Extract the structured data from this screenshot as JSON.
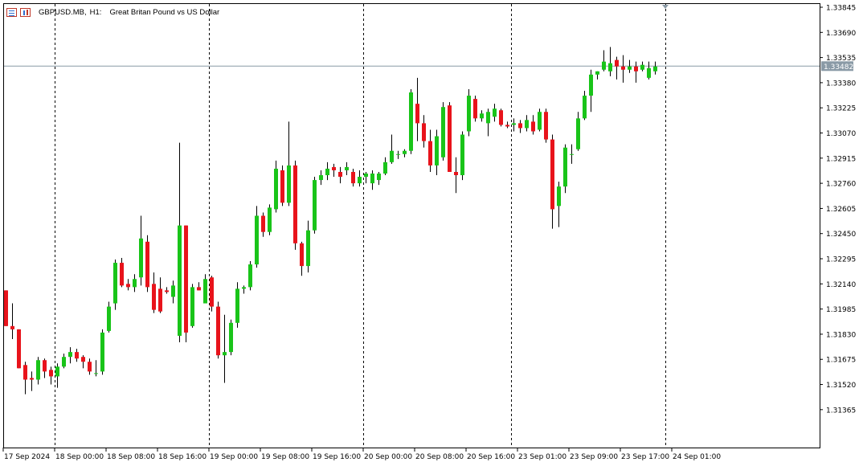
{
  "header": {
    "symbol": "GBPUSD.MB,",
    "timeframe": "H1:",
    "description": "Great Britan Pound vs US Dollar",
    "icons": [
      "list-icon",
      "candles-icon"
    ]
  },
  "current_price_label": "1.33482",
  "colors": {
    "bull": "#19c419",
    "bear": "#e8131b",
    "wick": "#000000",
    "grid": "#000000",
    "price_line": "#8a9aa6",
    "price_tag_bg": "#8a9aa6"
  },
  "chart_data": {
    "type": "candlestick",
    "ylim": [
      1.3128,
      1.33845
    ],
    "y_ticks": [
      "1.33845",
      "1.33690",
      "1.33535",
      "1.33380",
      "1.33225",
      "1.33070",
      "1.32915",
      "1.32760",
      "1.32605",
      "1.32450",
      "1.32295",
      "1.32140",
      "1.31985",
      "1.31830",
      "1.31675",
      "1.31520",
      "1.31365"
    ],
    "x_labels": [
      "17 Sep 2024",
      "18 Sep 00:00",
      "18 Sep 08:00",
      "18 Sep 16:00",
      "19 Sep 00:00",
      "19 Sep 08:00",
      "19 Sep 16:00",
      "20 Sep 00:00",
      "20 Sep 08:00",
      "20 Sep 16:00",
      "23 Sep 01:00",
      "23 Sep 09:00",
      "23 Sep 17:00",
      "24 Sep 01:00"
    ],
    "day_separators_at_label_index": [
      1,
      4,
      7,
      10,
      13
    ],
    "current_price": 1.33482,
    "candles": [
      {
        "o": 1.321,
        "h": 1.321,
        "l": 1.3188,
        "c": 1.3188
      },
      {
        "o": 1.3188,
        "h": 1.3202,
        "l": 1.318,
        "c": 1.3186
      },
      {
        "o": 1.3186,
        "h": 1.3186,
        "l": 1.3162,
        "c": 1.3162
      },
      {
        "o": 1.3164,
        "h": 1.3166,
        "l": 1.3146,
        "c": 1.3155
      },
      {
        "o": 1.3156,
        "h": 1.316,
        "l": 1.3148,
        "c": 1.3155
      },
      {
        "o": 1.3155,
        "h": 1.3169,
        "l": 1.3152,
        "c": 1.3167
      },
      {
        "o": 1.3167,
        "h": 1.3168,
        "l": 1.3156,
        "c": 1.316
      },
      {
        "o": 1.3161,
        "h": 1.3163,
        "l": 1.3152,
        "c": 1.3157
      },
      {
        "o": 1.3157,
        "h": 1.3165,
        "l": 1.315,
        "c": 1.3163
      },
      {
        "o": 1.3163,
        "h": 1.3171,
        "l": 1.3162,
        "c": 1.3169
      },
      {
        "o": 1.3169,
        "h": 1.3175,
        "l": 1.3165,
        "c": 1.3172
      },
      {
        "o": 1.3172,
        "h": 1.3174,
        "l": 1.3166,
        "c": 1.3168
      },
      {
        "o": 1.3169,
        "h": 1.317,
        "l": 1.3162,
        "c": 1.3166
      },
      {
        "o": 1.3166,
        "h": 1.3168,
        "l": 1.3158,
        "c": 1.316
      },
      {
        "o": 1.3159,
        "h": 1.3167,
        "l": 1.3157,
        "c": 1.3159
      },
      {
        "o": 1.316,
        "h": 1.3186,
        "l": 1.3158,
        "c": 1.3184
      },
      {
        "o": 1.3185,
        "h": 1.3203,
        "l": 1.3184,
        "c": 1.32
      },
      {
        "o": 1.3202,
        "h": 1.3229,
        "l": 1.3198,
        "c": 1.3227
      },
      {
        "o": 1.3227,
        "h": 1.323,
        "l": 1.3212,
        "c": 1.3213
      },
      {
        "o": 1.3214,
        "h": 1.3217,
        "l": 1.321,
        "c": 1.3212
      },
      {
        "o": 1.3212,
        "h": 1.322,
        "l": 1.3209,
        "c": 1.3217
      },
      {
        "o": 1.3218,
        "h": 1.3256,
        "l": 1.3213,
        "c": 1.3242
      },
      {
        "o": 1.324,
        "h": 1.3244,
        "l": 1.3209,
        "c": 1.3212
      },
      {
        "o": 1.3214,
        "h": 1.3221,
        "l": 1.3196,
        "c": 1.3198
      },
      {
        "o": 1.3211,
        "h": 1.3218,
        "l": 1.3196,
        "c": 1.3197
      },
      {
        "o": 1.321,
        "h": 1.3212,
        "l": 1.3208,
        "c": 1.3209
      },
      {
        "o": 1.3206,
        "h": 1.3216,
        "l": 1.3202,
        "c": 1.3213
      },
      {
        "o": 1.3182,
        "h": 1.3301,
        "l": 1.3178,
        "c": 1.325
      },
      {
        "o": 1.325,
        "h": 1.325,
        "l": 1.3178,
        "c": 1.3184
      },
      {
        "o": 1.3188,
        "h": 1.3214,
        "l": 1.3187,
        "c": 1.3212
      },
      {
        "o": 1.3212,
        "h": 1.3215,
        "l": 1.321,
        "c": 1.321
      },
      {
        "o": 1.3202,
        "h": 1.322,
        "l": 1.3202,
        "c": 1.3217
      },
      {
        "o": 1.3218,
        "h": 1.3219,
        "l": 1.3197,
        "c": 1.32
      },
      {
        "o": 1.32,
        "h": 1.3203,
        "l": 1.3168,
        "c": 1.317
      },
      {
        "o": 1.317,
        "h": 1.3195,
        "l": 1.3153,
        "c": 1.3172
      },
      {
        "o": 1.3172,
        "h": 1.3192,
        "l": 1.317,
        "c": 1.319
      },
      {
        "o": 1.319,
        "h": 1.3215,
        "l": 1.3187,
        "c": 1.3211
      },
      {
        "o": 1.3211,
        "h": 1.3213,
        "l": 1.3208,
        "c": 1.3212
      },
      {
        "o": 1.3212,
        "h": 1.3228,
        "l": 1.321,
        "c": 1.3226
      },
      {
        "o": 1.3226,
        "h": 1.3262,
        "l": 1.3224,
        "c": 1.3256
      },
      {
        "o": 1.3256,
        "h": 1.3258,
        "l": 1.3243,
        "c": 1.3246
      },
      {
        "o": 1.3246,
        "h": 1.3263,
        "l": 1.3244,
        "c": 1.3261
      },
      {
        "o": 1.326,
        "h": 1.329,
        "l": 1.3258,
        "c": 1.3285
      },
      {
        "o": 1.3284,
        "h": 1.3287,
        "l": 1.3262,
        "c": 1.3264
      },
      {
        "o": 1.3264,
        "h": 1.3314,
        "l": 1.3262,
        "c": 1.3287
      },
      {
        "o": 1.3287,
        "h": 1.329,
        "l": 1.3235,
        "c": 1.3239
      },
      {
        "o": 1.3239,
        "h": 1.324,
        "l": 1.3219,
        "c": 1.3225
      },
      {
        "o": 1.3225,
        "h": 1.3253,
        "l": 1.3221,
        "c": 1.3247
      },
      {
        "o": 1.3247,
        "h": 1.328,
        "l": 1.3245,
        "c": 1.3278
      },
      {
        "o": 1.3278,
        "h": 1.3284,
        "l": 1.3275,
        "c": 1.3281
      },
      {
        "o": 1.3281,
        "h": 1.3289,
        "l": 1.3278,
        "c": 1.3285
      },
      {
        "o": 1.3286,
        "h": 1.3288,
        "l": 1.328,
        "c": 1.3284
      },
      {
        "o": 1.3283,
        "h": 1.3286,
        "l": 1.3276,
        "c": 1.328
      },
      {
        "o": 1.3284,
        "h": 1.3289,
        "l": 1.3281,
        "c": 1.3286
      },
      {
        "o": 1.3283,
        "h": 1.3285,
        "l": 1.3274,
        "c": 1.3276
      },
      {
        "o": 1.3276,
        "h": 1.3284,
        "l": 1.3274,
        "c": 1.328
      },
      {
        "o": 1.328,
        "h": 1.3283,
        "l": 1.3276,
        "c": 1.3282
      },
      {
        "o": 1.3276,
        "h": 1.3284,
        "l": 1.3272,
        "c": 1.3282
      },
      {
        "o": 1.3278,
        "h": 1.3283,
        "l": 1.3275,
        "c": 1.3282
      },
      {
        "o": 1.3282,
        "h": 1.3292,
        "l": 1.3281,
        "c": 1.3289
      },
      {
        "o": 1.3289,
        "h": 1.3306,
        "l": 1.3288,
        "c": 1.3296
      },
      {
        "o": 1.3294,
        "h": 1.3296,
        "l": 1.3291,
        "c": 1.3294
      },
      {
        "o": 1.3294,
        "h": 1.3297,
        "l": 1.3292,
        "c": 1.3296
      },
      {
        "o": 1.3296,
        "h": 1.3334,
        "l": 1.3294,
        "c": 1.3332
      },
      {
        "o": 1.3325,
        "h": 1.3341,
        "l": 1.3302,
        "c": 1.3313
      },
      {
        "o": 1.3313,
        "h": 1.3318,
        "l": 1.3298,
        "c": 1.3302
      },
      {
        "o": 1.3302,
        "h": 1.3309,
        "l": 1.3283,
        "c": 1.3287
      },
      {
        "o": 1.3287,
        "h": 1.3309,
        "l": 1.3281,
        "c": 1.3305
      },
      {
        "o": 1.3292,
        "h": 1.3326,
        "l": 1.329,
        "c": 1.3323
      },
      {
        "o": 1.3324,
        "h": 1.3326,
        "l": 1.3283,
        "c": 1.3283
      },
      {
        "o": 1.3283,
        "h": 1.3292,
        "l": 1.327,
        "c": 1.3281
      },
      {
        "o": 1.3281,
        "h": 1.3308,
        "l": 1.3278,
        "c": 1.3306
      },
      {
        "o": 1.3308,
        "h": 1.3334,
        "l": 1.3305,
        "c": 1.333
      },
      {
        "o": 1.3328,
        "h": 1.333,
        "l": 1.3314,
        "c": 1.3316
      },
      {
        "o": 1.3316,
        "h": 1.3321,
        "l": 1.3314,
        "c": 1.3319
      },
      {
        "o": 1.3313,
        "h": 1.3322,
        "l": 1.3305,
        "c": 1.332
      },
      {
        "o": 1.3317,
        "h": 1.3325,
        "l": 1.3314,
        "c": 1.3322
      },
      {
        "o": 1.3321,
        "h": 1.3322,
        "l": 1.3311,
        "c": 1.3312
      },
      {
        "o": 1.3312,
        "h": 1.3314,
        "l": 1.331,
        "c": 1.3311
      },
      {
        "o": 1.3312,
        "h": 1.3316,
        "l": 1.3308,
        "c": 1.3313
      },
      {
        "o": 1.3313,
        "h": 1.3315,
        "l": 1.3307,
        "c": 1.331
      },
      {
        "o": 1.331,
        "h": 1.3318,
        "l": 1.3308,
        "c": 1.3315
      },
      {
        "o": 1.3314,
        "h": 1.3318,
        "l": 1.3306,
        "c": 1.3308
      },
      {
        "o": 1.3309,
        "h": 1.3322,
        "l": 1.3308,
        "c": 1.332
      },
      {
        "o": 1.332,
        "h": 1.3322,
        "l": 1.3301,
        "c": 1.3303
      },
      {
        "o": 1.3303,
        "h": 1.3306,
        "l": 1.3248,
        "c": 1.326
      },
      {
        "o": 1.3262,
        "h": 1.3277,
        "l": 1.3249,
        "c": 1.3274
      },
      {
        "o": 1.3274,
        "h": 1.33,
        "l": 1.327,
        "c": 1.3298
      },
      {
        "o": 1.3294,
        "h": 1.33,
        "l": 1.3288,
        "c": 1.3294
      },
      {
        "o": 1.3297,
        "h": 1.332,
        "l": 1.3296,
        "c": 1.3316
      },
      {
        "o": 1.3316,
        "h": 1.3333,
        "l": 1.3315,
        "c": 1.333
      },
      {
        "o": 1.333,
        "h": 1.3346,
        "l": 1.332,
        "c": 1.3343
      },
      {
        "o": 1.3343,
        "h": 1.3345,
        "l": 1.334,
        "c": 1.3345
      },
      {
        "o": 1.3346,
        "h": 1.3358,
        "l": 1.3345,
        "c": 1.3351
      },
      {
        "o": 1.3345,
        "h": 1.336,
        "l": 1.3342,
        "c": 1.335
      },
      {
        "o": 1.3352,
        "h": 1.3354,
        "l": 1.334,
        "c": 1.3348
      },
      {
        "o": 1.3348,
        "h": 1.3355,
        "l": 1.3338,
        "c": 1.3346
      },
      {
        "o": 1.3346,
        "h": 1.3352,
        "l": 1.3344,
        "c": 1.3348
      },
      {
        "o": 1.3348,
        "h": 1.3351,
        "l": 1.3338,
        "c": 1.3345
      },
      {
        "o": 1.3346,
        "h": 1.3351,
        "l": 1.3345,
        "c": 1.3349
      },
      {
        "o": 1.3341,
        "h": 1.3351,
        "l": 1.334,
        "c": 1.3347
      },
      {
        "o": 1.3345,
        "h": 1.3351,
        "l": 1.3343,
        "c": 1.3348
      }
    ]
  }
}
